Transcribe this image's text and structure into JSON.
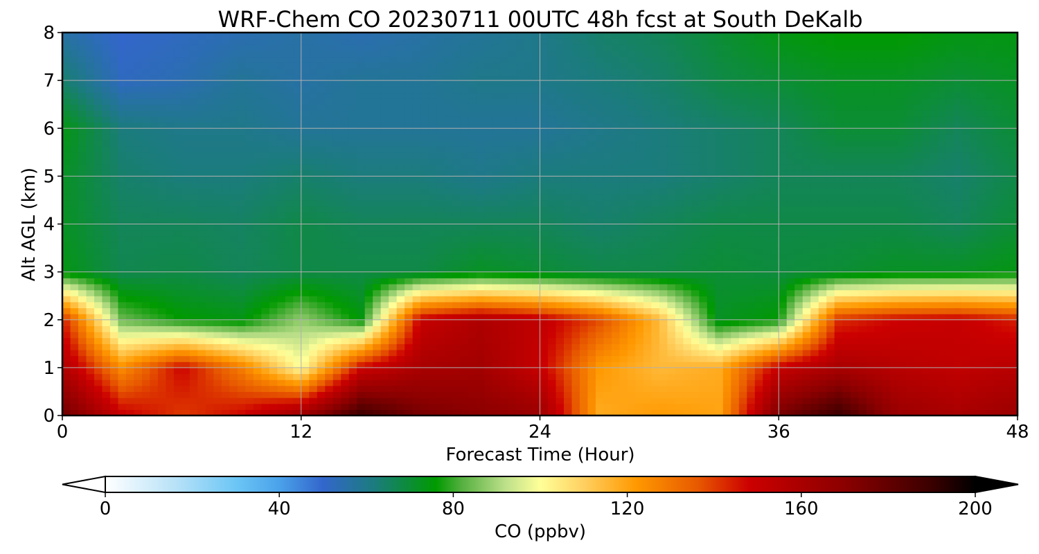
{
  "chart_data": {
    "type": "heatmap",
    "title": "WRF-Chem CO  20230711 00UTC 48h fcst at South DeKalb",
    "xlabel": "Forecast Time (Hour)",
    "ylabel": "Alt AGL (km)",
    "xlim": [
      0,
      48
    ],
    "ylim": [
      0,
      8
    ],
    "x_ticks": [
      0,
      12,
      24,
      36,
      48
    ],
    "y_ticks": [
      0,
      1,
      2,
      3,
      4,
      5,
      6,
      7,
      8
    ],
    "grid": true,
    "colorbar": {
      "label": "CO  (ppbv)",
      "ticks": [
        0,
        40,
        80,
        120,
        160,
        200
      ],
      "range": [
        0,
        200
      ],
      "extend": "both",
      "orientation": "horizontal",
      "stops": [
        {
          "value": 0,
          "color": "#ffffff"
        },
        {
          "value": 16,
          "color": "#b8e2f8"
        },
        {
          "value": 30,
          "color": "#6cc6f5"
        },
        {
          "value": 40,
          "color": "#4aa2ea"
        },
        {
          "value": 50,
          "color": "#3366cc"
        },
        {
          "value": 62,
          "color": "#1b7c7c"
        },
        {
          "value": 76,
          "color": "#009a00"
        },
        {
          "value": 82,
          "color": "#55b040"
        },
        {
          "value": 92,
          "color": "#bde08a"
        },
        {
          "value": 100,
          "color": "#ffff99"
        },
        {
          "value": 110,
          "color": "#ffd060"
        },
        {
          "value": 122,
          "color": "#ff9900"
        },
        {
          "value": 136,
          "color": "#e85a00"
        },
        {
          "value": 148,
          "color": "#cc0000"
        },
        {
          "value": 170,
          "color": "#8b0000"
        },
        {
          "value": 190,
          "color": "#3a0000"
        },
        {
          "value": 200,
          "color": "#000000"
        }
      ]
    },
    "x": [
      0,
      3,
      6,
      9,
      12,
      15,
      18,
      21,
      24,
      27,
      30,
      33,
      36,
      39,
      42,
      45,
      48
    ],
    "y": [
      0,
      1,
      2,
      3,
      4,
      5,
      6,
      7,
      8
    ],
    "z": [
      [
        178,
        150,
        140,
        148,
        165,
        190,
        175,
        170,
        165,
        118,
        122,
        120,
        175,
        190,
        165,
        160,
        165
      ],
      [
        158,
        125,
        148,
        128,
        100,
        148,
        160,
        162,
        150,
        122,
        115,
        118,
        150,
        160,
        155,
        152,
        155
      ],
      [
        145,
        84,
        76,
        74,
        88,
        75,
        150,
        158,
        152,
        138,
        115,
        72,
        76,
        142,
        148,
        150,
        144
      ],
      [
        74,
        67,
        68,
        66,
        68,
        68,
        68,
        72,
        70,
        68,
        68,
        70,
        69,
        70,
        72,
        72,
        74
      ],
      [
        72,
        66,
        66,
        65,
        68,
        66,
        66,
        66,
        66,
        64,
        66,
        68,
        68,
        68,
        68,
        66,
        70
      ],
      [
        72,
        64,
        62,
        62,
        64,
        62,
        62,
        60,
        62,
        62,
        62,
        64,
        66,
        66,
        66,
        64,
        68
      ],
      [
        74,
        62,
        60,
        60,
        58,
        58,
        58,
        58,
        58,
        60,
        62,
        64,
        66,
        70,
        70,
        66,
        70
      ],
      [
        64,
        52,
        54,
        58,
        56,
        58,
        58,
        60,
        60,
        62,
        64,
        68,
        70,
        72,
        72,
        70,
        72
      ],
      [
        56,
        50,
        52,
        54,
        56,
        54,
        56,
        58,
        60,
        64,
        66,
        70,
        74,
        76,
        76,
        74,
        74
      ]
    ]
  }
}
